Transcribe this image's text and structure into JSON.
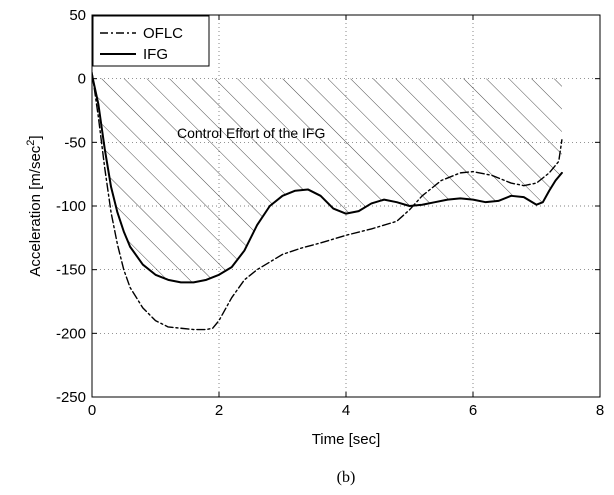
{
  "chart_data": {
    "type": "line",
    "xlabel": "Time [sec]",
    "ylabel": "Acceleration [m/sec",
    "ylabel_sup": "2",
    "ylabel_close": "]",
    "xlim": [
      0,
      8
    ],
    "ylim": [
      -250,
      50
    ],
    "xticks": [
      0,
      2,
      4,
      6,
      8
    ],
    "yticks": [
      50,
      0,
      -50,
      -100,
      -150,
      -200,
      -250
    ],
    "grid": true,
    "legend_position": "top-left",
    "annotation": "Control Effort of the IFG",
    "caption": "(b)",
    "series": [
      {
        "name": "OFLC",
        "style": "dash-dot",
        "x": [
          0,
          0.1,
          0.2,
          0.3,
          0.4,
          0.5,
          0.6,
          0.8,
          1.0,
          1.2,
          1.4,
          1.6,
          1.8,
          1.9,
          2.0,
          2.2,
          2.4,
          2.6,
          2.8,
          3.0,
          3.3,
          3.6,
          4.0,
          4.4,
          4.8,
          5.0,
          5.2,
          5.5,
          5.8,
          6.0,
          6.3,
          6.6,
          6.8,
          7.0,
          7.2,
          7.35,
          7.4
        ],
        "values": [
          5,
          -30,
          -70,
          -105,
          -130,
          -150,
          -164,
          -180,
          -190,
          -195,
          -196,
          -197,
          -197,
          -196,
          -190,
          -172,
          -158,
          -150,
          -144,
          -138,
          -133,
          -129,
          -123,
          -118,
          -112,
          -103,
          -92,
          -80,
          -74,
          -73,
          -76,
          -82,
          -84,
          -82,
          -74,
          -65,
          -48
        ]
      },
      {
        "name": "IFG",
        "style": "solid",
        "x": [
          0,
          0.1,
          0.2,
          0.3,
          0.4,
          0.5,
          0.6,
          0.8,
          1.0,
          1.2,
          1.4,
          1.6,
          1.8,
          2.0,
          2.2,
          2.4,
          2.6,
          2.8,
          3.0,
          3.2,
          3.4,
          3.6,
          3.8,
          4.0,
          4.2,
          4.4,
          4.6,
          4.8,
          5.0,
          5.2,
          5.4,
          5.6,
          5.8,
          6.0,
          6.2,
          6.4,
          6.6,
          6.8,
          7.0,
          7.1,
          7.2,
          7.3,
          7.4
        ],
        "values": [
          3,
          -20,
          -55,
          -85,
          -105,
          -120,
          -132,
          -146,
          -154,
          -158,
          -160,
          -160,
          -158,
          -154,
          -148,
          -135,
          -115,
          -100,
          -92,
          -88,
          -87,
          -92,
          -102,
          -106,
          -104,
          -98,
          -95,
          -97,
          -100,
          -99,
          -97,
          -95,
          -94,
          -95,
          -97,
          -96,
          -92,
          -93,
          -99,
          -97,
          -88,
          -80,
          -74
        ]
      }
    ],
    "shaded_region": {
      "series": "IFG",
      "between_y": 0,
      "x_range": [
        0,
        7.4
      ],
      "pattern": "diagonal-hatch"
    }
  }
}
